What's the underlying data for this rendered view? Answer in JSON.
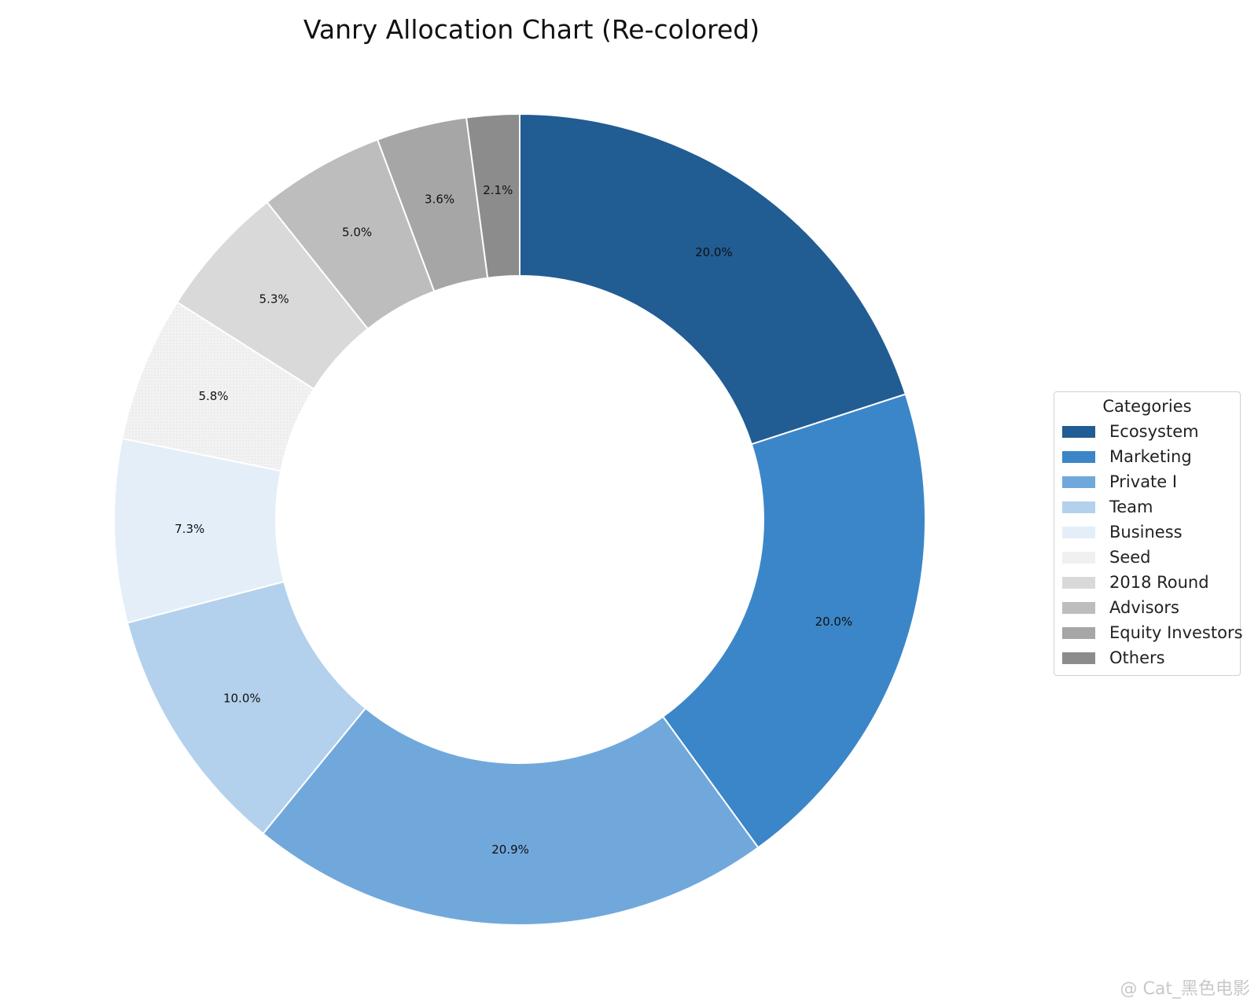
{
  "chart_data": {
    "type": "pie",
    "style": "donut",
    "title": "Vanry Allocation Chart (Re-colored)",
    "legend_title": "Categories",
    "legend_position": "right",
    "start_angle": "top, clockwise",
    "categories": [
      "Ecosystem",
      "Marketing",
      "Private I",
      "Team",
      "Business",
      "Seed",
      "2018 Round",
      "Advisors",
      "Equity Investors",
      "Others"
    ],
    "values": [
      20.0,
      20.0,
      20.9,
      10.0,
      7.3,
      5.8,
      5.3,
      5.0,
      3.6,
      2.1
    ],
    "labels": [
      "20.0%",
      "20.0%",
      "20.9%",
      "10.0%",
      "7.3%",
      "5.8%",
      "5.3%",
      "5.0%",
      "3.6%",
      "2.1%"
    ],
    "colors": [
      "#215c93",
      "#3b86c8",
      "#71a8dc",
      "#b3d1ec",
      "#e4eef8",
      "#f0f0f0",
      "#d9d9d9",
      "#bdbdbd",
      "#a6a6a6",
      "#8c8c8c"
    ]
  },
  "watermark": "@ Cat_黑色电影"
}
